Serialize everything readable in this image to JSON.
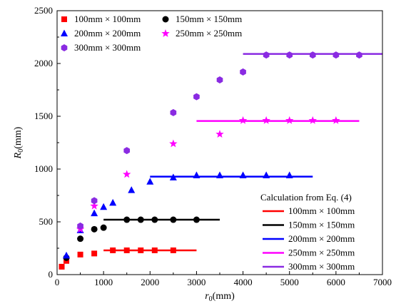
{
  "chart_data": {
    "type": "scatter",
    "xlabel": "r0(mm)",
    "ylabel": "R0(mm)",
    "xlim": [
      0,
      7000
    ],
    "ylim": [
      0,
      2500
    ],
    "xticks": [
      0,
      1000,
      2000,
      3000,
      4000,
      5000,
      6000,
      7000
    ],
    "yticks": [
      0,
      500,
      1000,
      1500,
      2000,
      2500
    ],
    "grid": false,
    "series": [
      {
        "name": "100mm × 100mm",
        "marker": "square",
        "color": "#ff0000",
        "x": [
          100,
          200,
          500,
          800,
          1200,
          1500,
          1800,
          2100,
          2500
        ],
        "y": [
          75,
          130,
          190,
          200,
          230,
          230,
          230,
          230,
          230
        ]
      },
      {
        "name": "150mm × 150mm",
        "marker": "circle",
        "color": "#000000",
        "x": [
          200,
          500,
          800,
          1000,
          1500,
          1800,
          2100,
          2500,
          3000
        ],
        "y": [
          160,
          340,
          430,
          445,
          520,
          520,
          520,
          520,
          520
        ]
      },
      {
        "name": "200mm × 200mm",
        "marker": "triangle",
        "color": "#0000ff",
        "x": [
          200,
          500,
          800,
          1000,
          1200,
          1600,
          2000,
          2500,
          3000,
          3500,
          4000,
          4500,
          5000
        ],
        "y": [
          180,
          420,
          580,
          640,
          680,
          800,
          880,
          920,
          940,
          940,
          940,
          940,
          940
        ]
      },
      {
        "name": "250mm × 250mm",
        "marker": "star",
        "color": "#ff00ff",
        "x": [
          500,
          800,
          1500,
          2500,
          3500,
          4000,
          4500,
          5000,
          5500,
          6000
        ],
        "y": [
          430,
          650,
          950,
          1240,
          1330,
          1460,
          1460,
          1460,
          1460,
          1460
        ]
      },
      {
        "name": "300mm × 300mm",
        "marker": "hexagon",
        "color": "#8a2be2",
        "x": [
          500,
          800,
          1500,
          2500,
          3000,
          3500,
          4000,
          4500,
          5000,
          5500,
          6000,
          6500
        ],
        "y": [
          460,
          700,
          1175,
          1535,
          1685,
          1845,
          1920,
          2080,
          2080,
          2080,
          2080,
          2080
        ]
      }
    ],
    "calc_title": "Calculation from Eq. (4)",
    "calc_lines": [
      {
        "name": "100mm × 100mm",
        "color": "#ff0000",
        "x": [
          1000,
          3000
        ],
        "y": 230
      },
      {
        "name": "150mm × 150mm",
        "color": "#000000",
        "x": [
          1000,
          3500
        ],
        "y": 520
      },
      {
        "name": "200mm × 200mm",
        "color": "#0000ff",
        "x": [
          2000,
          5500
        ],
        "y": 928
      },
      {
        "name": "250mm × 250mm",
        "color": "#ff00ff",
        "x": [
          3000,
          6500
        ],
        "y": 1455
      },
      {
        "name": "300mm × 300mm",
        "color": "#8a2be2",
        "x": [
          4000,
          7000
        ],
        "y": 2090
      }
    ]
  }
}
